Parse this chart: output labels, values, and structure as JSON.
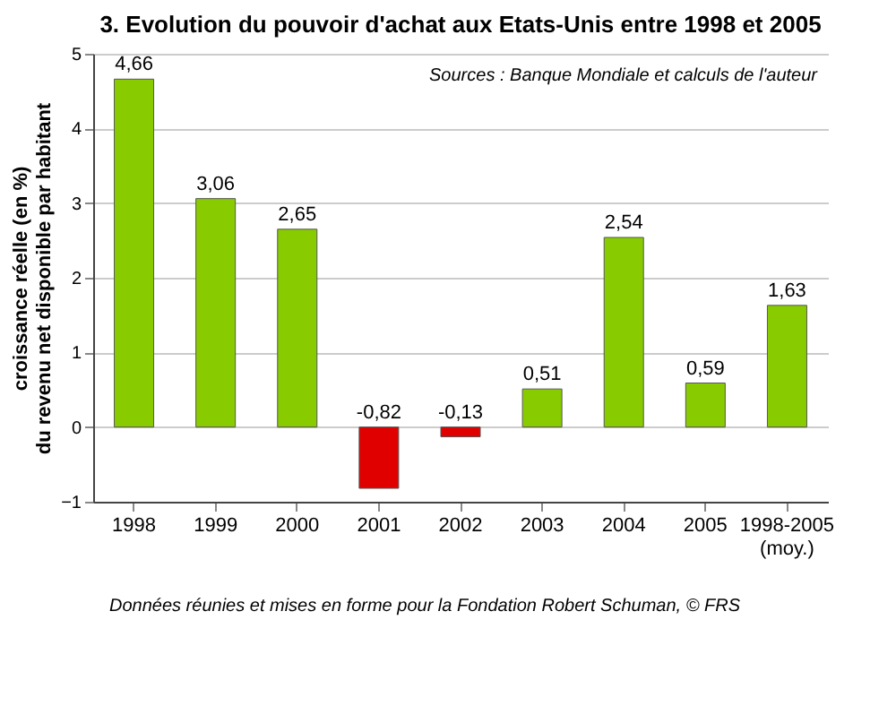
{
  "chart_data": {
    "type": "bar",
    "title": "3.  Evolution du pouvoir d'achat aux Etats-Unis entre 1998 et 2005",
    "ylabel": "croissance réelle (en %)\ndu revenu net disponible par habitant",
    "categories": [
      "1998",
      "1999",
      "2000",
      "2001",
      "2002",
      "2003",
      "2004",
      "2005",
      "1998-2005 (moy.)"
    ],
    "values": [
      4.66,
      3.06,
      2.65,
      -0.82,
      -0.13,
      0.51,
      2.54,
      0.59,
      1.63
    ],
    "value_labels": [
      "4,66",
      "3,06",
      "2,65",
      "-0,82",
      "-0,13",
      "0,51",
      "2,54",
      "0,59",
      "1,63"
    ],
    "colors": [
      "#88cc00",
      "#88cc00",
      "#88cc00",
      "#e00000",
      "#e00000",
      "#88cc00",
      "#88cc00",
      "#88cc00",
      "#88cc00"
    ],
    "ylim": [
      -1,
      5
    ],
    "yticks": [
      -1,
      0,
      1,
      2,
      3,
      4,
      5
    ],
    "grid": "y",
    "legend": false,
    "annotations": [
      "Sources : Banque Mondiale et calculs de l'auteur",
      "Données réunies et mises en forme pour la Fondation Robert Schuman, © FRS"
    ]
  }
}
